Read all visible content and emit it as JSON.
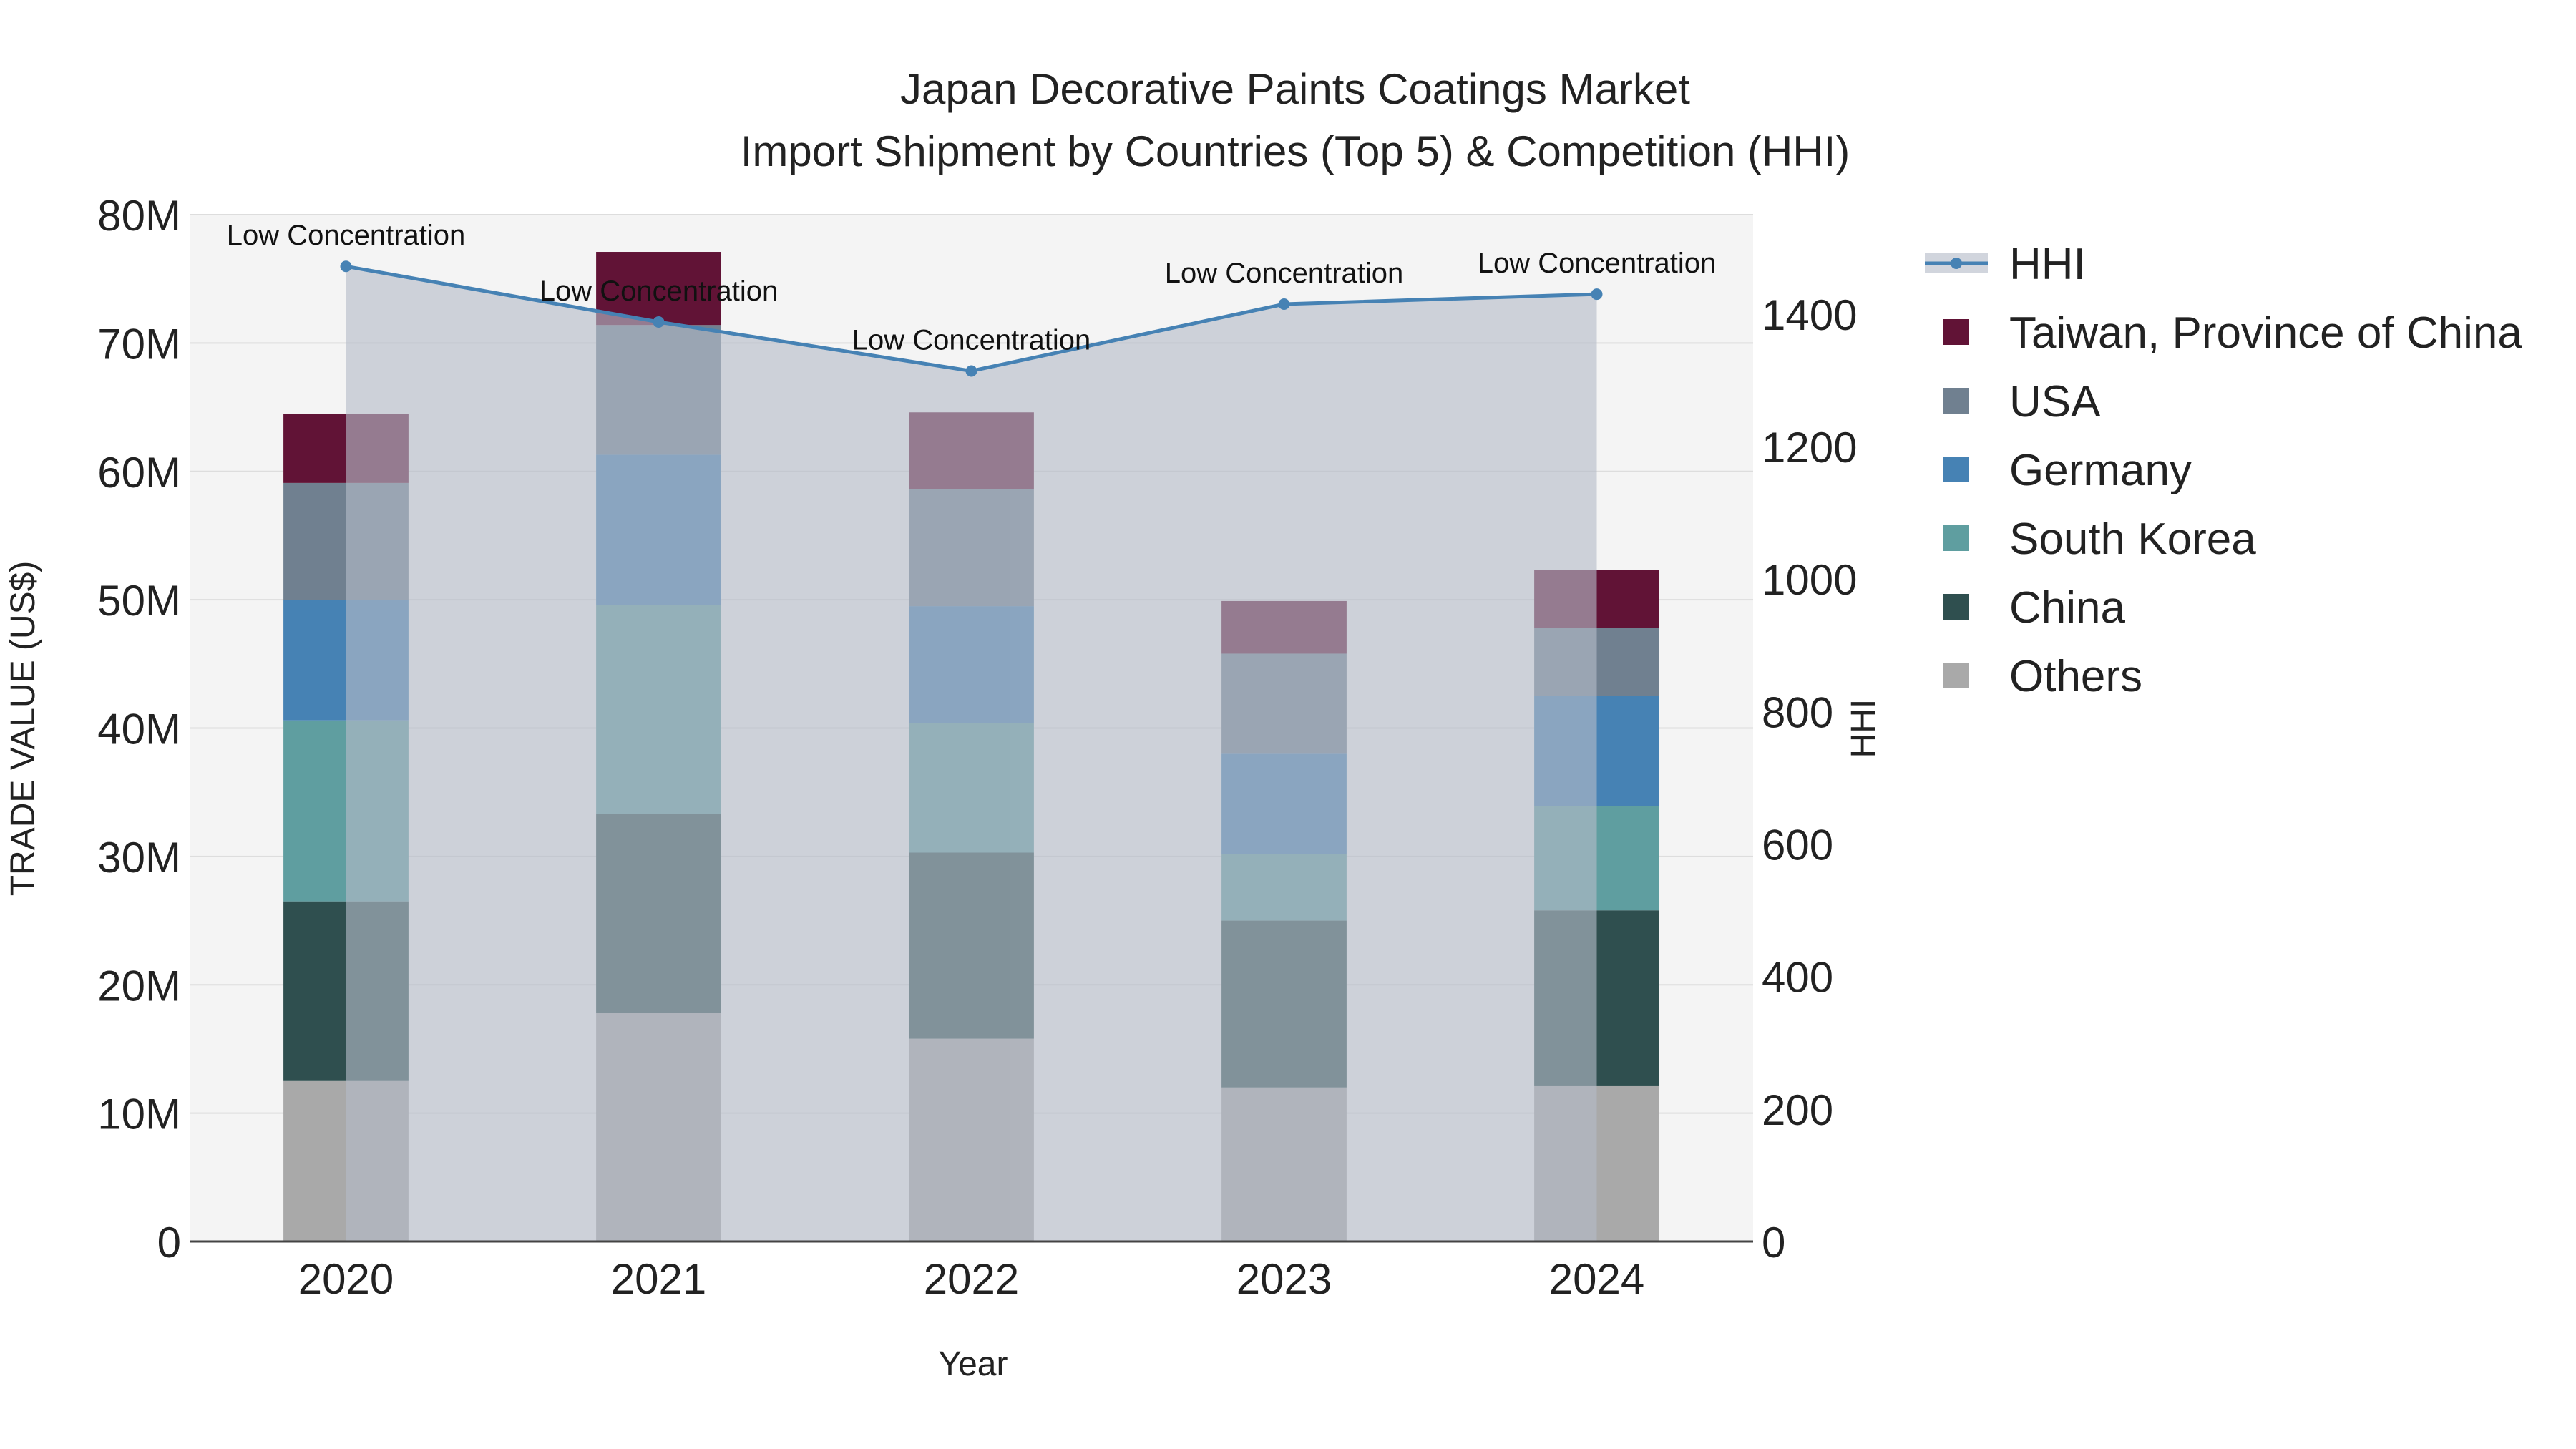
{
  "chart_data": {
    "type": "bar",
    "title_line1": "Japan Decorative Paints Coatings Market",
    "title_line2": "Import Shipment by Countries (Top 5) & Competition (HHI)",
    "xlabel": "Year",
    "ylabel": "TRADE VALUE (US$)",
    "y2label": "HHI",
    "categories": [
      "2020",
      "2021",
      "2022",
      "2023",
      "2024"
    ],
    "ylim": [
      0,
      80000000
    ],
    "y_ticks": [
      {
        "value": 0,
        "label": "0"
      },
      {
        "value": 10000000,
        "label": "10M"
      },
      {
        "value": 20000000,
        "label": "20M"
      },
      {
        "value": 30000000,
        "label": "30M"
      },
      {
        "value": 40000000,
        "label": "40M"
      },
      {
        "value": 50000000,
        "label": "50M"
      },
      {
        "value": 60000000,
        "label": "60M"
      },
      {
        "value": 70000000,
        "label": "70M"
      },
      {
        "value": 80000000,
        "label": "80M"
      }
    ],
    "y2lim": [
      0,
      1550
    ],
    "y2_ticks": [
      {
        "value": 0,
        "label": "0"
      },
      {
        "value": 200,
        "label": "200"
      },
      {
        "value": 400,
        "label": "400"
      },
      {
        "value": 600,
        "label": "600"
      },
      {
        "value": 800,
        "label": "800"
      },
      {
        "value": 1000,
        "label": "1000"
      },
      {
        "value": 1200,
        "label": "1200"
      },
      {
        "value": 1400,
        "label": "1400"
      }
    ],
    "series": [
      {
        "name": "Others",
        "color": "#a9a9a9",
        "values": [
          12500000,
          17800000,
          15800000,
          12000000,
          12100000
        ]
      },
      {
        "name": "China",
        "color": "#2f4f4f",
        "values": [
          14000000,
          15500000,
          14500000,
          13000000,
          13700000
        ]
      },
      {
        "name": "South Korea",
        "color": "#5f9ea0",
        "values": [
          14100000,
          16300000,
          10100000,
          5200000,
          8100000
        ]
      },
      {
        "name": "Germany",
        "color": "#4682b4",
        "values": [
          9400000,
          11700000,
          9100000,
          7800000,
          8600000
        ]
      },
      {
        "name": "USA",
        "color": "#708090",
        "values": [
          9100000,
          10100000,
          9100000,
          7800000,
          5300000
        ]
      },
      {
        "name": "Taiwan, Province of China",
        "color": "#611336",
        "values": [
          5400000,
          5700000,
          6000000,
          4100000,
          4500000
        ]
      }
    ],
    "hhi": {
      "name": "HHI",
      "color": "#4682b4",
      "values": [
        1472,
        1388,
        1314,
        1415,
        1430
      ],
      "annotations": [
        "Low Concentration",
        "Low Concentration",
        "Low Concentration",
        "Low Concentration",
        "Low Concentration"
      ]
    },
    "legend_order": [
      "HHI",
      "Taiwan, Province of China",
      "USA",
      "Germany",
      "South Korea",
      "China",
      "Others"
    ],
    "legend_position": "right"
  }
}
